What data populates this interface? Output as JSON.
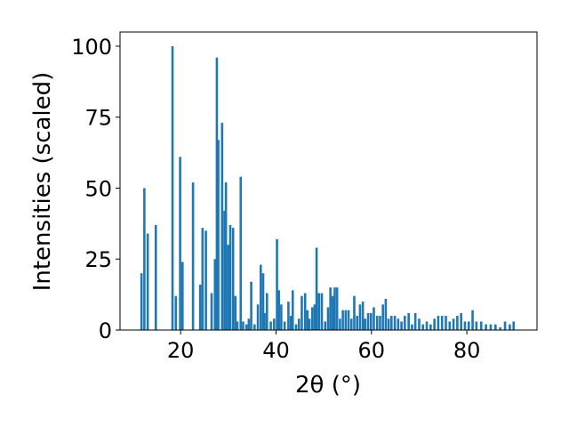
{
  "chart_data": {
    "type": "bar",
    "xlabel": "2θ (°)",
    "ylabel": "Intensities (scaled)",
    "xlim": [
      7.3,
      94.7
    ],
    "ylim": [
      0,
      105
    ],
    "xticks": [
      "20",
      "40",
      "60",
      "80"
    ],
    "yticks": [
      "0",
      "25",
      "50",
      "75",
      "100"
    ],
    "bar_color": "#1f77b4",
    "x": [
      11.8,
      12.4,
      13.1,
      14.8,
      18.3,
      19.0,
      19.9,
      20.4,
      22.6,
      24.1,
      24.6,
      25.3,
      26.5,
      27.2,
      27.6,
      27.9,
      28.7,
      29.2,
      29.5,
      30.0,
      30.4,
      31.0,
      31.5,
      31.9,
      32.6,
      33.1,
      33.8,
      34.3,
      34.8,
      35.5,
      36.2,
      36.8,
      37.3,
      37.6,
      38.1,
      38.9,
      39.6,
      40.2,
      40.6,
      41.1,
      41.8,
      42.6,
      43.1,
      43.5,
      44.2,
      44.8,
      45.4,
      46.1,
      46.6,
      47.0,
      47.6,
      48.1,
      48.5,
      49.0,
      49.6,
      50.3,
      50.9,
      51.4,
      51.9,
      52.3,
      52.8,
      53.4,
      54.0,
      54.6,
      55.2,
      55.8,
      56.4,
      57.0,
      57.6,
      58.2,
      58.7,
      59.3,
      59.9,
      60.5,
      61.2,
      61.8,
      62.4,
      63.0,
      63.6,
      64.2,
      64.9,
      65.6,
      66.3,
      67.0,
      67.8,
      68.5,
      69.2,
      70.0,
      70.8,
      71.6,
      72.4,
      73.2,
      74.0,
      74.8,
      75.6,
      76.4,
      77.2,
      78.0,
      78.8,
      79.6,
      80.4,
      81.2,
      82.0,
      83.0,
      84.0,
      85.0,
      86.0,
      87.0,
      88.0,
      89.0,
      89.8
    ],
    "values": [
      20,
      50,
      34,
      37,
      100,
      12,
      61,
      24,
      52,
      16,
      36,
      35,
      13,
      25,
      96,
      67,
      73,
      42,
      52,
      30,
      37,
      36,
      12,
      3,
      54,
      3,
      2,
      4,
      17,
      2,
      9,
      23,
      20,
      6,
      13,
      3,
      4,
      32,
      14,
      9,
      3,
      10,
      5,
      14,
      2,
      4,
      12,
      13,
      7,
      4,
      8,
      9,
      29,
      13,
      13,
      3,
      8,
      15,
      12,
      15,
      15,
      4,
      7,
      7,
      7,
      4,
      12,
      5,
      9,
      10,
      4,
      6,
      6,
      8,
      5,
      5,
      9,
      11,
      4,
      5,
      5,
      4,
      3,
      5,
      6,
      2,
      6,
      4,
      2,
      3,
      2,
      4,
      5,
      5,
      5,
      3,
      4,
      5,
      6,
      3,
      3,
      7,
      3,
      3,
      2,
      2,
      2,
      1,
      3,
      2,
      3
    ]
  }
}
